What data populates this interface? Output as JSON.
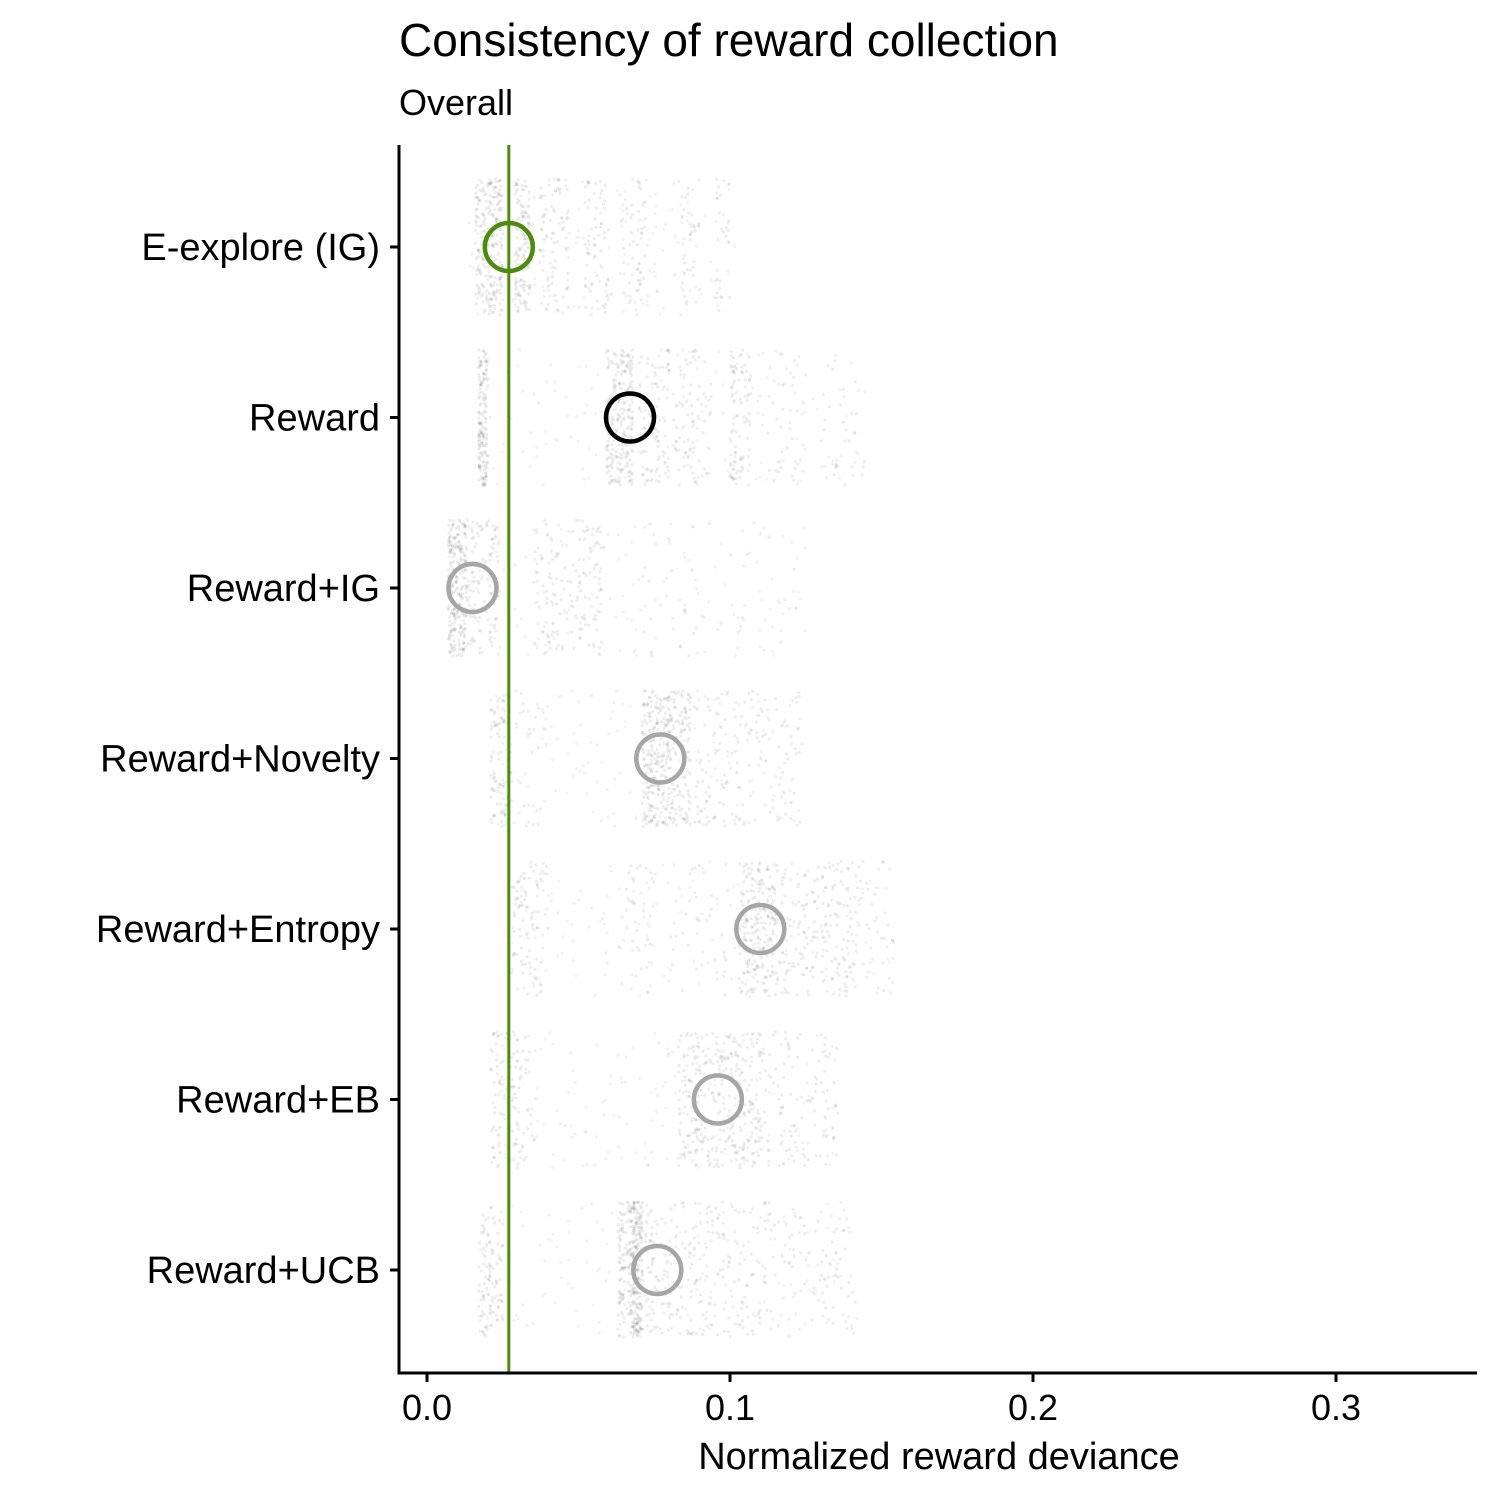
{
  "chart_data": {
    "type": "scatter",
    "title": "Consistency of reward collection",
    "subtitle": "Overall",
    "xlabel": "Normalized reward deviance",
    "ylabel": "",
    "xlim": [
      -0.009,
      0.348
    ],
    "x_ticks": [
      0.0,
      0.1,
      0.2,
      0.3
    ],
    "x_tick_labels": [
      "0.0",
      "0.1",
      "0.2",
      "0.3"
    ],
    "grid": false,
    "legend": "none",
    "reference_line": {
      "x": 0.027,
      "color": "#4d8c0a"
    },
    "categories": [
      "E-explore (IG)",
      "Reward",
      "Reward+IG",
      "Reward+Novelty",
      "Reward+Entropy",
      "Reward+EB",
      "Reward+UCB"
    ],
    "series": [
      {
        "category": "E-explore (IG)",
        "mean": 0.027,
        "highlight": "green",
        "point_range": [
          0.013,
          0.102
        ],
        "dense_bands": [
          [
            0.016,
            0.025,
            0.9
          ],
          [
            0.029,
            0.034,
            0.5
          ],
          [
            0.037,
            0.047,
            0.3
          ],
          [
            0.052,
            0.06,
            0.25
          ],
          [
            0.064,
            0.072,
            0.2
          ],
          [
            0.083,
            0.09,
            0.15
          ],
          [
            0.095,
            0.1,
            0.12
          ]
        ]
      },
      {
        "category": "Reward",
        "mean": 0.067,
        "highlight": "black",
        "point_range": [
          0.017,
          0.145
        ],
        "dense_bands": [
          [
            0.017,
            0.02,
            0.6
          ],
          [
            0.059,
            0.068,
            0.9
          ],
          [
            0.07,
            0.08,
            0.35
          ],
          [
            0.081,
            0.094,
            0.3
          ],
          [
            0.1,
            0.107,
            0.35
          ],
          [
            0.112,
            0.125,
            0.15
          ],
          [
            0.13,
            0.145,
            0.12
          ]
        ]
      },
      {
        "category": "Reward+IG",
        "mean": 0.015,
        "highlight": "gray",
        "point_range": [
          0.007,
          0.125
        ],
        "dense_bands": [
          [
            0.007,
            0.013,
            0.95
          ],
          [
            0.013,
            0.024,
            0.45
          ],
          [
            0.035,
            0.05,
            0.35
          ],
          [
            0.05,
            0.058,
            0.25
          ],
          [
            0.07,
            0.1,
            0.08
          ],
          [
            0.1,
            0.125,
            0.05
          ]
        ]
      },
      {
        "category": "Reward+Novelty",
        "mean": 0.077,
        "highlight": "gray",
        "point_range": [
          0.021,
          0.124
        ],
        "dense_bands": [
          [
            0.021,
            0.028,
            0.4
          ],
          [
            0.029,
            0.04,
            0.12
          ],
          [
            0.071,
            0.08,
            0.9
          ],
          [
            0.08,
            0.087,
            0.5
          ],
          [
            0.088,
            0.1,
            0.25
          ],
          [
            0.1,
            0.113,
            0.18
          ],
          [
            0.113,
            0.124,
            0.15
          ]
        ]
      },
      {
        "category": "Reward+Entropy",
        "mean": 0.11,
        "highlight": "gray",
        "point_range": [
          0.028,
          0.154
        ],
        "dense_bands": [
          [
            0.028,
            0.04,
            0.35
          ],
          [
            0.063,
            0.075,
            0.15
          ],
          [
            0.08,
            0.1,
            0.15
          ],
          [
            0.103,
            0.115,
            0.8
          ],
          [
            0.115,
            0.128,
            0.35
          ],
          [
            0.128,
            0.14,
            0.35
          ],
          [
            0.14,
            0.154,
            0.2
          ]
        ]
      },
      {
        "category": "Reward+EB",
        "mean": 0.096,
        "highlight": "gray",
        "point_range": [
          0.021,
          0.136
        ],
        "dense_bands": [
          [
            0.021,
            0.03,
            0.35
          ],
          [
            0.03,
            0.036,
            0.12
          ],
          [
            0.083,
            0.097,
            0.6
          ],
          [
            0.097,
            0.11,
            0.6
          ],
          [
            0.11,
            0.124,
            0.25
          ],
          [
            0.124,
            0.136,
            0.2
          ]
        ]
      },
      {
        "category": "Reward+UCB",
        "mean": 0.076,
        "highlight": "gray",
        "point_range": [
          0.017,
          0.142
        ],
        "dense_bands": [
          [
            0.017,
            0.025,
            0.4
          ],
          [
            0.063,
            0.067,
            0.35
          ],
          [
            0.067,
            0.071,
            0.9
          ],
          [
            0.071,
            0.085,
            0.4
          ],
          [
            0.085,
            0.1,
            0.35
          ],
          [
            0.1,
            0.114,
            0.25
          ],
          [
            0.114,
            0.13,
            0.15
          ],
          [
            0.13,
            0.142,
            0.15
          ]
        ]
      }
    ],
    "colors": {
      "points": "#000000",
      "mean_green": "#4d8c0a",
      "mean_black": "#000000",
      "mean_gray": "#a6a6a6",
      "axis": "#000000"
    }
  }
}
